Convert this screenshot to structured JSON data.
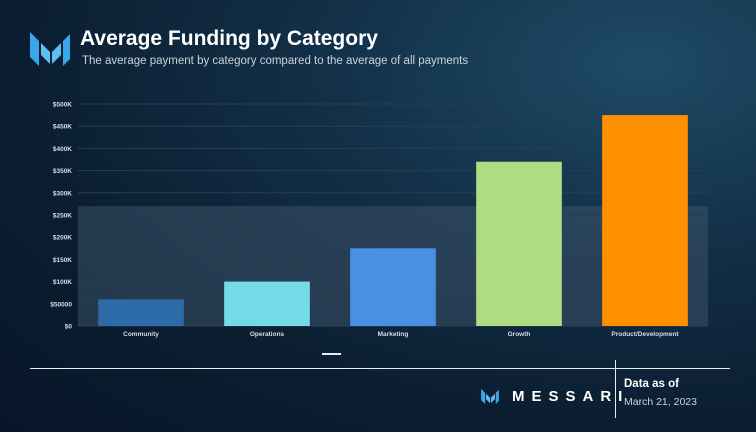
{
  "header": {
    "title": "Average Funding by Category",
    "subtitle": "The average payment by category compared to the average of all payments"
  },
  "footer": {
    "brand": "MESSARI",
    "as_of_label": "Data as of",
    "as_of_date": "March 21, 2023"
  },
  "colors": {
    "background": "#0b1d30",
    "grid": "#2a3d52",
    "average_band": "#3d5268",
    "logo": "#3aa8e8"
  },
  "chart_data": {
    "type": "bar",
    "title": "Average Funding by Category",
    "subtitle": "The average payment by category compared to the average of all payments",
    "categories": [
      "Community",
      "Operations",
      "Marketing",
      "Growth",
      "Product/Development"
    ],
    "values": [
      60000,
      100000,
      175000,
      370000,
      475000
    ],
    "colors": [
      "#2d6aa8",
      "#72dbe6",
      "#4a90e2",
      "#addd80",
      "#ff9100"
    ],
    "ylim": [
      0,
      500000
    ],
    "yticks": [
      0,
      50000,
      100000,
      150000,
      200000,
      250000,
      300000,
      350000,
      400000,
      450000,
      500000
    ],
    "ytick_labels": [
      "$0",
      "$50000",
      "$100K",
      "$150K",
      "$200K",
      "$250K",
      "$300K",
      "$350K",
      "$400K",
      "$450K",
      "$500K"
    ],
    "average_band": [
      0,
      270000
    ],
    "xlabel": "",
    "ylabel": "",
    "grid": true,
    "legend": "bottom-center"
  }
}
